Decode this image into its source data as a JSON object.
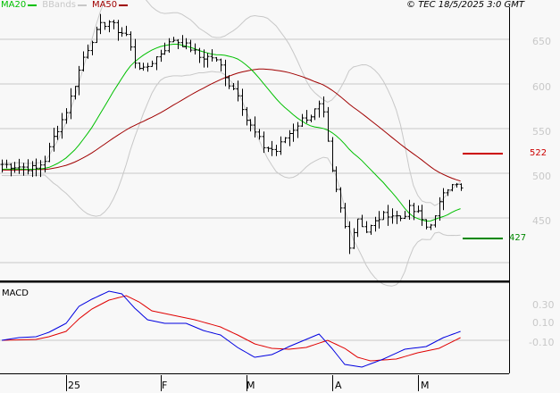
{
  "legend": {
    "ma20": "MA20",
    "bbands": "BBands",
    "ma50": "MA50"
  },
  "copyright": "© TEC 18/5/2025 3:0 GMT",
  "colors": {
    "ma20": "#00c000",
    "bbands": "#c8c8c8",
    "ma50": "#a00000",
    "macd": "#0000e0",
    "signal": "#e00000",
    "bars": "#000000"
  },
  "chart_data": {
    "type": "ohlc",
    "price_axis": {
      "ticks": [
        650,
        600,
        550,
        500,
        450
      ],
      "labels": [
        "650",
        "600",
        "550",
        "500",
        "450"
      ],
      "range": [
        380,
        694
      ]
    },
    "x_ticks": [
      {
        "day": 15,
        "label": "25"
      },
      {
        "day": 37,
        "label": "F"
      },
      {
        "day": 57,
        "label": "M"
      },
      {
        "day": 77,
        "label": "A"
      },
      {
        "day": 97,
        "label": "M"
      }
    ],
    "close_points": [
      [
        0,
        510
      ],
      [
        8,
        505
      ],
      [
        10,
        515
      ],
      [
        12,
        540
      ],
      [
        15,
        570
      ],
      [
        17,
        600
      ],
      [
        19,
        630
      ],
      [
        21,
        650
      ],
      [
        23,
        665
      ],
      [
        25,
        670
      ],
      [
        27,
        660
      ],
      [
        29,
        655
      ],
      [
        31,
        625
      ],
      [
        33,
        615
      ],
      [
        35,
        625
      ],
      [
        37,
        635
      ],
      [
        40,
        650
      ],
      [
        42,
        645
      ],
      [
        44,
        640
      ],
      [
        46,
        630
      ],
      [
        49,
        630
      ],
      [
        51,
        620
      ],
      [
        53,
        600
      ],
      [
        55,
        590
      ],
      [
        57,
        560
      ],
      [
        59,
        545
      ],
      [
        61,
        530
      ],
      [
        64,
        525
      ],
      [
        66,
        540
      ],
      [
        68,
        550
      ],
      [
        70,
        560
      ],
      [
        72,
        565
      ],
      [
        74,
        575
      ],
      [
        75,
        565
      ],
      [
        77,
        500
      ],
      [
        78,
        480
      ],
      [
        80,
        440
      ],
      [
        81,
        420
      ],
      [
        83,
        450
      ],
      [
        85,
        435
      ],
      [
        88,
        450
      ],
      [
        90,
        455
      ],
      [
        93,
        450
      ],
      [
        95,
        460
      ],
      [
        97,
        455
      ],
      [
        99,
        440
      ],
      [
        101,
        450
      ],
      [
        103,
        480
      ],
      [
        105,
        490
      ],
      [
        107,
        482
      ]
    ],
    "markers": [
      {
        "label": "522",
        "color": "#cc0000",
        "value": 522
      },
      {
        "label": "427",
        "color": "#008800",
        "value": 427
      }
    ],
    "macd": {
      "title": "MACD",
      "axis_labels": [
        "0.30",
        "0.10",
        "-0.10"
      ],
      "macd": [
        [
          0,
          0
        ],
        [
          4,
          0.75
        ],
        [
          8,
          1
        ],
        [
          11,
          2.25
        ],
        [
          15,
          4.75
        ],
        [
          18,
          9.5
        ],
        [
          21,
          11.5
        ],
        [
          25,
          13.75
        ],
        [
          28,
          13
        ],
        [
          31,
          9
        ],
        [
          34,
          5.75
        ],
        [
          38,
          4.75
        ],
        [
          43,
          4.75
        ],
        [
          47,
          2.75
        ],
        [
          51,
          1.5
        ],
        [
          55,
          -2
        ],
        [
          59,
          -4.75
        ],
        [
          63,
          -4
        ],
        [
          67,
          -1.75
        ],
        [
          71,
          0.25
        ],
        [
          74,
          1.75
        ],
        [
          77,
          -2.25
        ],
        [
          80,
          -6.75
        ],
        [
          84,
          -7.5
        ],
        [
          89,
          -5.25
        ],
        [
          94,
          -2.5
        ],
        [
          99,
          -1.75
        ],
        [
          103,
          0.75
        ],
        [
          107,
          2.5
        ]
      ],
      "signal": [
        [
          0,
          0
        ],
        [
          8,
          0.25
        ],
        [
          11,
          1
        ],
        [
          15,
          2.5
        ],
        [
          18,
          6
        ],
        [
          21,
          8.75
        ],
        [
          25,
          11.25
        ],
        [
          29,
          12.5
        ],
        [
          32,
          10.75
        ],
        [
          35,
          8.25
        ],
        [
          40,
          7
        ],
        [
          45,
          5.75
        ],
        [
          51,
          3.75
        ],
        [
          55,
          1.5
        ],
        [
          59,
          -1
        ],
        [
          63,
          -2.25
        ],
        [
          67,
          -2.5
        ],
        [
          71,
          -2
        ],
        [
          76,
          0
        ],
        [
          80,
          -2.25
        ],
        [
          83,
          -4.75
        ],
        [
          86,
          -5.75
        ],
        [
          92,
          -5.25
        ],
        [
          97,
          -3.5
        ],
        [
          102,
          -2.25
        ],
        [
          107,
          0.75
        ]
      ]
    }
  }
}
